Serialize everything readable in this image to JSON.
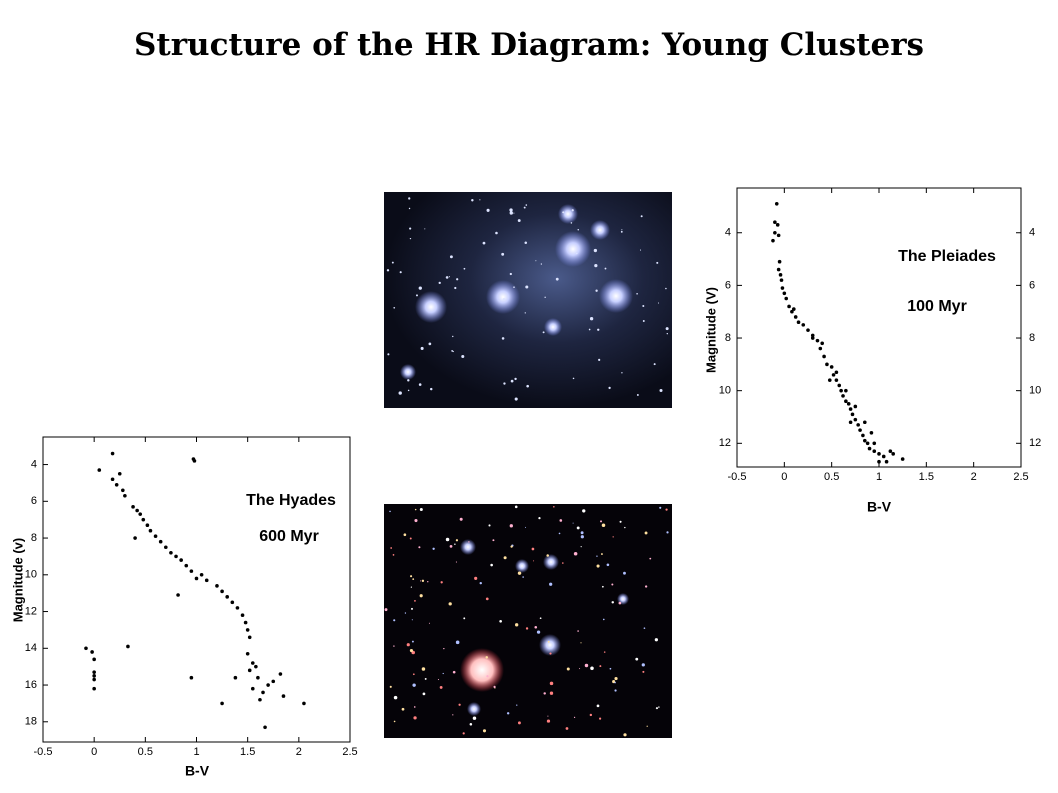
{
  "title": "Structure of the HR Diagram: Young Clusters",
  "chart_data": [
    {
      "type": "scatter",
      "annotations": [
        "The Pleiades",
        "100 Myr"
      ],
      "xlabel": "B-V",
      "ylabel": "Magnitude (V)",
      "color": "#000000",
      "xlim": [
        -0.5,
        2.5
      ],
      "xticks": [
        -0.5,
        0,
        0.5,
        1,
        1.5,
        2,
        2.5
      ],
      "ylim": [
        12.9,
        2.3
      ],
      "yticks": [
        4,
        6,
        8,
        10,
        12
      ],
      "y2lim": [
        12.9,
        2.3
      ],
      "y2ticks": [
        4,
        6,
        8,
        10,
        12
      ],
      "x": [
        -0.08,
        -0.1,
        -0.07,
        -0.1,
        -0.06,
        -0.12,
        -0.05,
        -0.06,
        -0.04,
        -0.03,
        -0.02,
        0,
        0.02,
        0.05,
        0.08,
        0.12,
        0.15,
        0.2,
        0.25,
        0.3,
        0.35,
        0.38,
        0.42,
        0.45,
        0.5,
        0.52,
        0.55,
        0.58,
        0.6,
        0.62,
        0.65,
        0.68,
        0.7,
        0.72,
        0.75,
        0.78,
        0.8,
        0.83,
        0.85,
        0.88,
        0.9,
        0.95,
        1.0,
        1.05,
        1.08,
        1.12,
        1.15,
        1.25,
        0.4,
        0.55,
        0.65,
        0.75,
        0.85,
        0.92,
        0.1,
        0.3,
        0.48,
        0.7,
        0.95,
        1.0
      ],
      "values": [
        2.9,
        3.6,
        3.7,
        4.0,
        4.1,
        4.3,
        5.1,
        5.4,
        5.6,
        5.8,
        6.1,
        6.3,
        6.5,
        6.8,
        7.0,
        7.2,
        7.4,
        7.5,
        7.7,
        7.9,
        8.1,
        8.4,
        8.7,
        9.0,
        9.1,
        9.4,
        9.6,
        9.8,
        10.0,
        10.2,
        10.4,
        10.5,
        10.7,
        10.9,
        11.1,
        11.3,
        11.5,
        11.7,
        11.9,
        12.0,
        12.2,
        12.3,
        12.4,
        12.5,
        12.7,
        12.3,
        12.4,
        12.6,
        8.2,
        9.3,
        10.0,
        10.6,
        11.2,
        11.6,
        6.9,
        8.0,
        9.6,
        11.2,
        12.0,
        12.7
      ]
    },
    {
      "type": "scatter",
      "annotations": [
        "The Hyades",
        "600 Myr"
      ],
      "xlabel": "B-V",
      "ylabel": "Magnitude (v)",
      "color": "#000000",
      "xlim": [
        -0.5,
        2.5
      ],
      "xticks": [
        -0.5,
        0,
        0.5,
        1,
        1.5,
        2,
        2.5
      ],
      "ylim": [
        19.1,
        2.5
      ],
      "yticks": [
        4,
        6,
        8,
        10,
        12,
        14,
        16,
        18
      ],
      "x": [
        0.18,
        0.97,
        0.98,
        0.05,
        0.25,
        0.18,
        0.22,
        0.28,
        0.3,
        0.38,
        0.42,
        0.45,
        0.48,
        0.52,
        0.55,
        0.6,
        0.65,
        0.4,
        0.7,
        0.75,
        0.8,
        0.85,
        0.9,
        0.95,
        1.0,
        1.05,
        1.1,
        1.2,
        1.25,
        1.3,
        1.35,
        1.4,
        1.45,
        1.48,
        1.5,
        1.52,
        0.82,
        1.5,
        1.55,
        1.52,
        1.58,
        1.6,
        1.55,
        1.65,
        1.62,
        1.7,
        1.75,
        1.82,
        1.85,
        2.05,
        1.25,
        1.38,
        1.67,
        0.95,
        0.33,
        -0.08,
        -0.02,
        0.0,
        0.0,
        0.0,
        0.0,
        0.0
      ],
      "values": [
        3.4,
        3.7,
        3.8,
        4.3,
        4.5,
        4.8,
        5.1,
        5.4,
        5.7,
        6.3,
        6.5,
        6.7,
        7.0,
        7.3,
        7.6,
        7.9,
        8.2,
        8.0,
        8.5,
        8.8,
        9.0,
        9.2,
        9.5,
        9.8,
        10.2,
        10.0,
        10.3,
        10.6,
        10.9,
        11.2,
        11.5,
        11.8,
        12.2,
        12.6,
        13.0,
        13.4,
        11.1,
        14.3,
        14.8,
        15.2,
        15.0,
        15.6,
        16.2,
        16.4,
        16.8,
        16.0,
        15.8,
        15.4,
        16.6,
        17.0,
        17.0,
        15.6,
        18.3,
        15.6,
        13.9,
        14.0,
        14.2,
        14.6,
        15.3,
        15.5,
        15.7,
        16.2
      ]
    }
  ]
}
